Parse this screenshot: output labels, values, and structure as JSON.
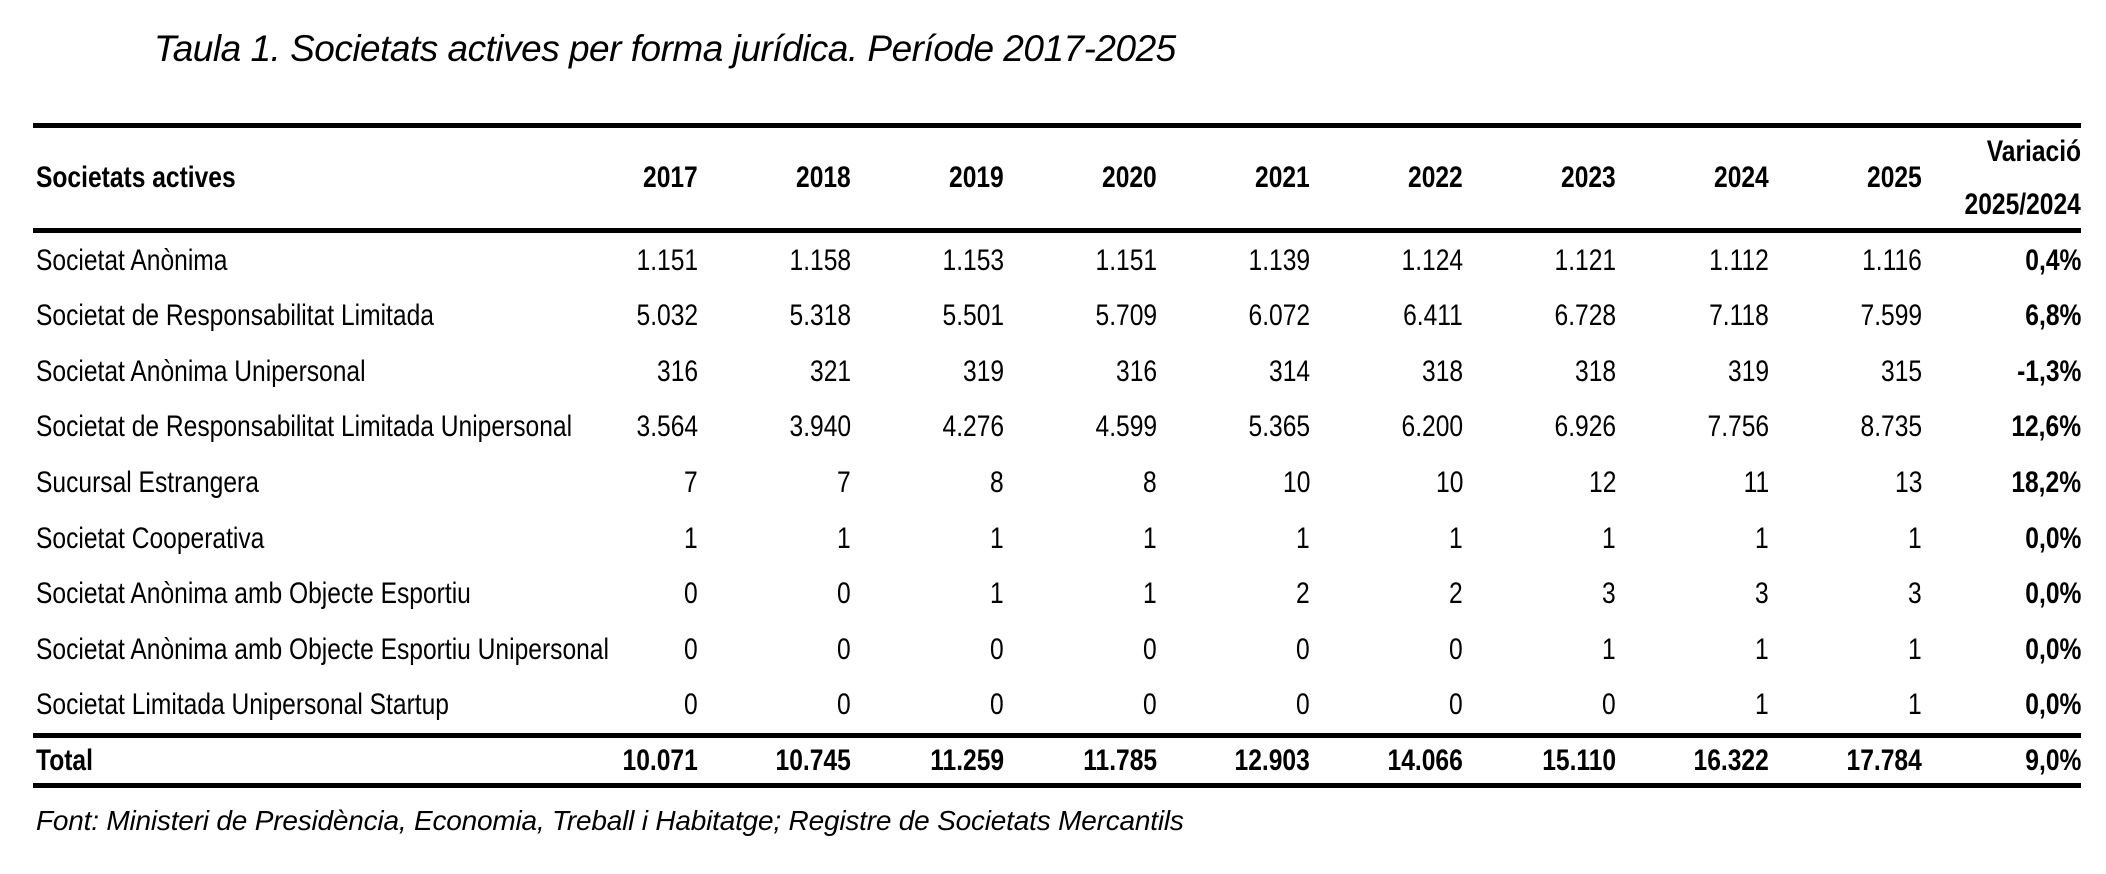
{
  "title": "Taula 1. Societats actives per forma jurídica. Període 2017-2025",
  "table": {
    "label_header": "Societats actives",
    "years": [
      "2017",
      "2018",
      "2019",
      "2020",
      "2021",
      "2022",
      "2023",
      "2024",
      "2025"
    ],
    "variation_header": {
      "line1": "Variació",
      "line2": "2025/2024"
    },
    "rows": [
      {
        "label": "Societat Anònima",
        "values": [
          "1.151",
          "1.158",
          "1.153",
          "1.151",
          "1.139",
          "1.124",
          "1.121",
          "1.112",
          "1.116"
        ],
        "variation": "0,4%"
      },
      {
        "label": "Societat de Responsabilitat Limitada",
        "values": [
          "5.032",
          "5.318",
          "5.501",
          "5.709",
          "6.072",
          "6.411",
          "6.728",
          "7.118",
          "7.599"
        ],
        "variation": "6,8%"
      },
      {
        "label": "Societat Anònima Unipersonal",
        "values": [
          "316",
          "321",
          "319",
          "316",
          "314",
          "318",
          "318",
          "319",
          "315"
        ],
        "variation": "-1,3%"
      },
      {
        "label": "Societat de Responsabilitat Limitada Unipersonal",
        "values": [
          "3.564",
          "3.940",
          "4.276",
          "4.599",
          "5.365",
          "6.200",
          "6.926",
          "7.756",
          "8.735"
        ],
        "variation": "12,6%"
      },
      {
        "label": "Sucursal Estrangera",
        "values": [
          "7",
          "7",
          "8",
          "8",
          "10",
          "10",
          "12",
          "11",
          "13"
        ],
        "variation": "18,2%"
      },
      {
        "label": "Societat Cooperativa",
        "values": [
          "1",
          "1",
          "1",
          "1",
          "1",
          "1",
          "1",
          "1",
          "1"
        ],
        "variation": "0,0%"
      },
      {
        "label": "Societat Anònima amb Objecte Esportiu",
        "values": [
          "0",
          "0",
          "1",
          "1",
          "2",
          "2",
          "3",
          "3",
          "3"
        ],
        "variation": "0,0%"
      },
      {
        "label": "Societat Anònima amb Objecte Esportiu Unipersonal",
        "values": [
          "0",
          "0",
          "0",
          "0",
          "0",
          "0",
          "1",
          "1",
          "1"
        ],
        "variation": "0,0%"
      },
      {
        "label": "Societat Limitada Unipersonal Startup",
        "values": [
          "0",
          "0",
          "0",
          "0",
          "0",
          "0",
          "0",
          "1",
          "1"
        ],
        "variation": "0,0%"
      }
    ],
    "total": {
      "label": "Total",
      "values": [
        "10.071",
        "10.745",
        "11.259",
        "11.785",
        "12.903",
        "14.066",
        "15.110",
        "16.322",
        "17.784"
      ],
      "variation": "9,0%"
    }
  },
  "source_note": "Font: Ministeri de Presidència, Economia, Treball i Habitatge; Registre de Societats Mercantils",
  "colors": {
    "text": "#000000",
    "background": "#ffffff",
    "rule": "#000000"
  }
}
